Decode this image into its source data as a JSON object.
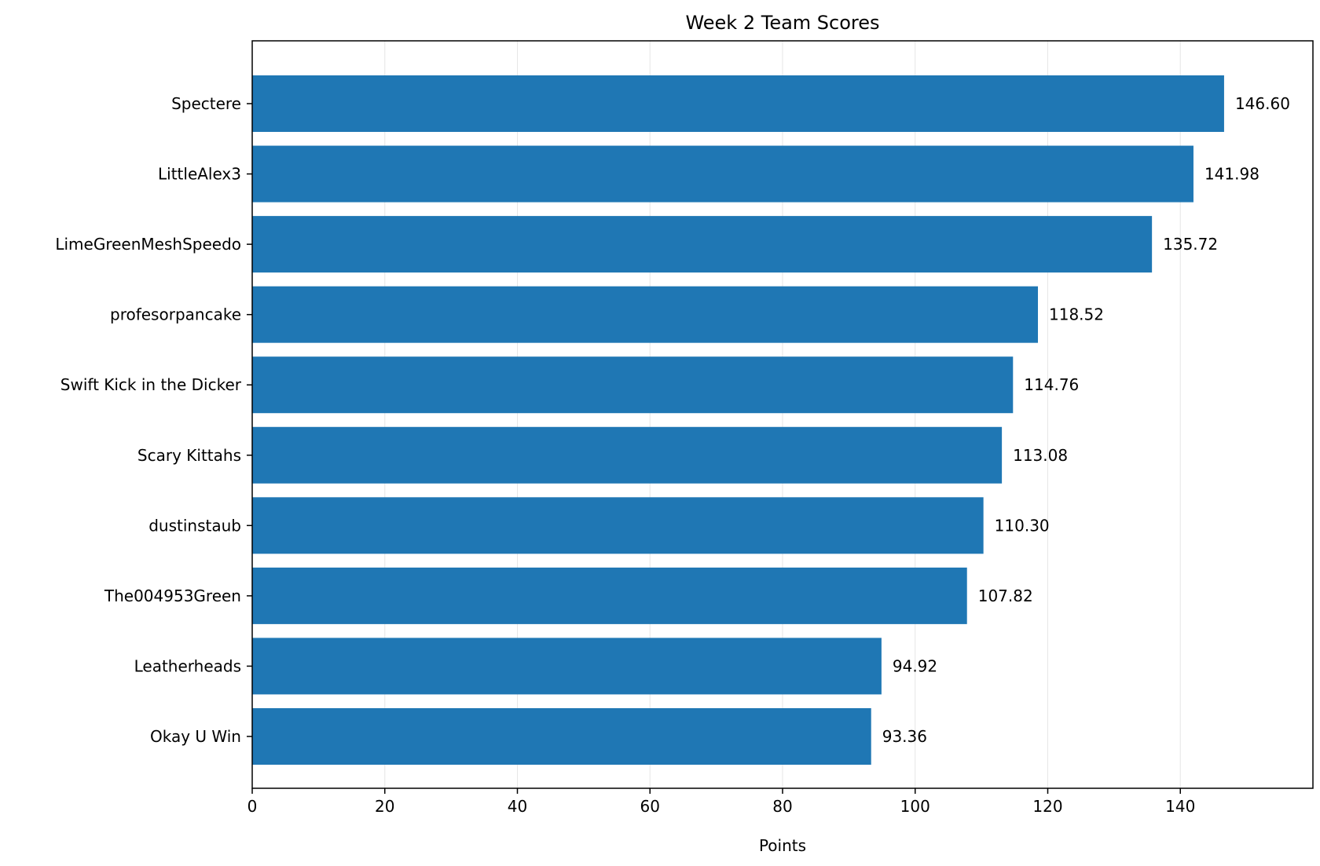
{
  "chart_data": {
    "type": "bar",
    "orientation": "horizontal",
    "title": "Week 2 Team Scores",
    "xlabel": "Points",
    "ylabel": "",
    "categories": [
      "Spectere",
      "LittleAlex3",
      "LimeGreenMeshSpeedo",
      "profesorpancake",
      "Swift Kick in the Dicker",
      "Scary Kittahs",
      "dustinstaub",
      "The004953Green",
      "Leatherheads",
      "Okay U Win"
    ],
    "values": [
      146.6,
      141.98,
      135.72,
      118.52,
      114.76,
      113.08,
      110.3,
      107.82,
      94.92,
      93.36
    ],
    "value_labels": [
      "146.60",
      "141.98",
      "135.72",
      "118.52",
      "114.76",
      "113.08",
      "110.30",
      "107.82",
      "94.92",
      "93.36"
    ],
    "xlim": [
      0,
      160
    ],
    "xticks": [
      0,
      20,
      40,
      60,
      80,
      100,
      120,
      140
    ],
    "xtick_labels": [
      "0",
      "20",
      "40",
      "60",
      "80",
      "100",
      "120",
      "140"
    ],
    "grid": "x",
    "bar_color": "#1f77b4",
    "grid_color": "#e6e6e6"
  }
}
